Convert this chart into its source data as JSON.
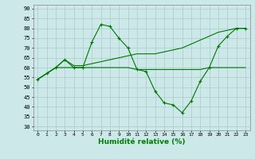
{
  "background_color": "#cce8e8",
  "grid_color": "#aacccc",
  "line_color": "#007700",
  "xlabel": "Humidité relative (%)",
  "ylabel_ticks": [
    30,
    35,
    40,
    45,
    50,
    55,
    60,
    65,
    70,
    75,
    80,
    85,
    90
  ],
  "xlim": [
    -0.5,
    23.5
  ],
  "ylim": [
    28,
    92
  ],
  "line1_y": [
    54,
    57,
    60,
    64,
    60,
    60,
    73,
    82,
    81,
    75,
    70,
    59,
    58,
    48,
    42,
    41,
    37,
    43,
    53,
    60,
    71,
    76,
    80,
    80
  ],
  "line2_y": [
    54,
    57,
    60,
    60,
    60,
    60,
    60,
    60,
    60,
    60,
    60,
    59,
    59,
    59,
    59,
    59,
    59,
    59,
    59,
    60,
    60,
    60,
    60,
    60
  ],
  "line3_y": [
    54,
    57,
    60,
    64,
    61,
    61,
    62,
    63,
    64,
    65,
    66,
    67,
    67,
    67,
    68,
    69,
    70,
    72,
    74,
    76,
    78,
    79,
    80,
    80
  ]
}
